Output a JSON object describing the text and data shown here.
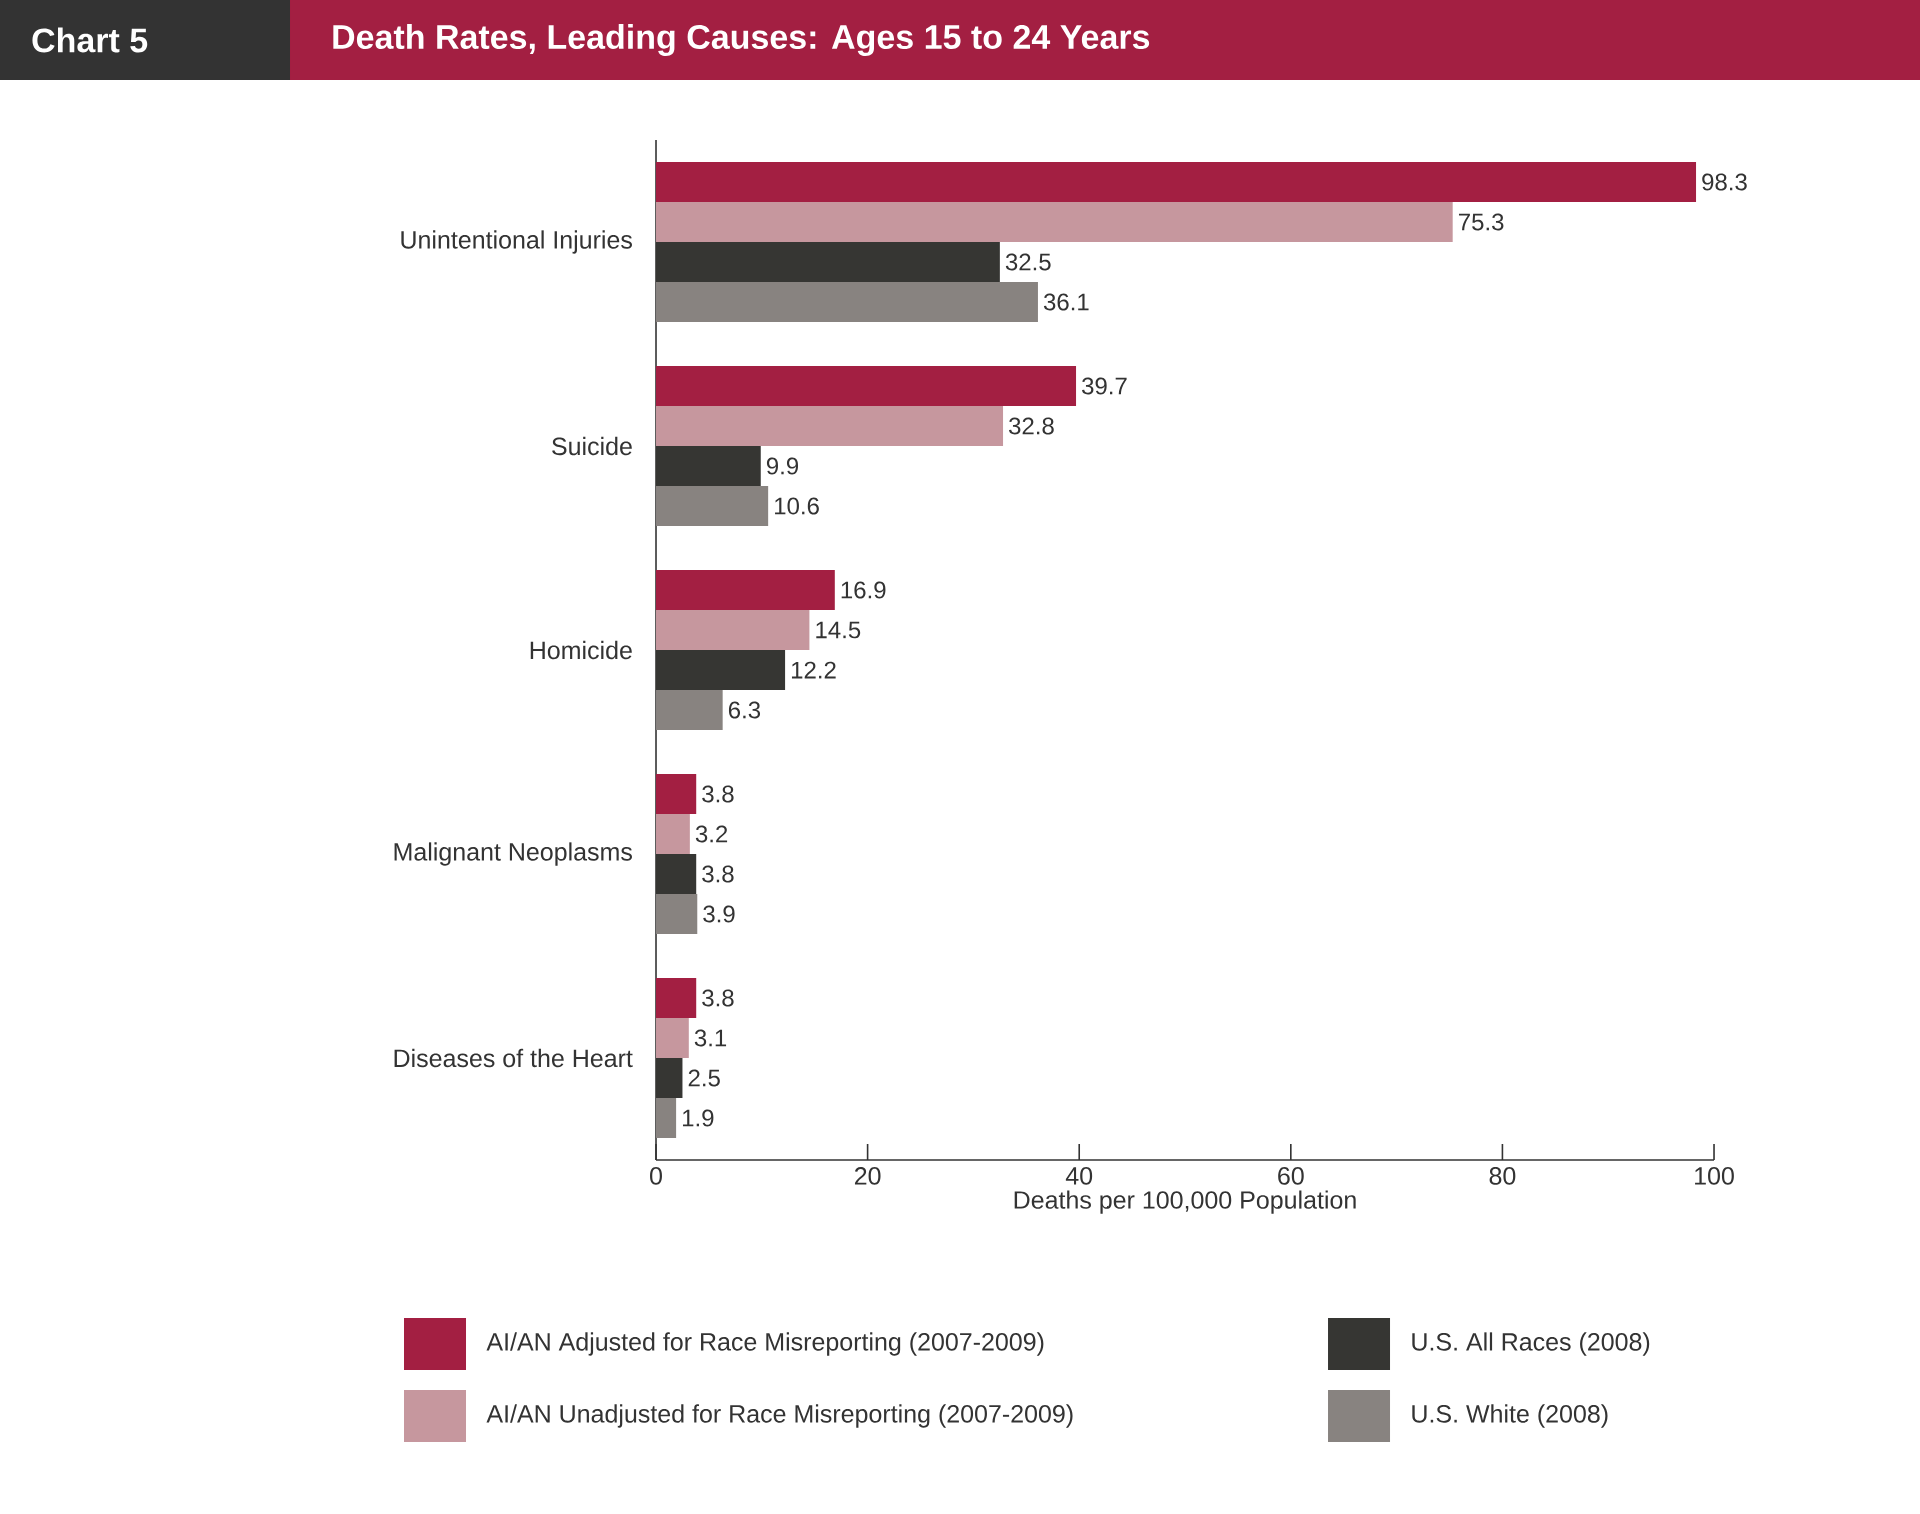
{
  "chart_data": {
    "type": "bar",
    "orientation": "horizontal",
    "title": "Death Rates, Leading Causes: Ages 15 to 24 Years",
    "annotations": [
      "Chart 5"
    ],
    "xlabel": "Deaths per 100,000 Population",
    "categories": [
      "Unintentional Injuries",
      "Suicide",
      "Homicide",
      "Malignant Neoplasms",
      "Diseases of the Heart"
    ],
    "series": [
      {
        "name": "AI/AN Adjusted for Race Misreporting (2007-2009)",
        "color": "#a31f42",
        "values": [
          98.3,
          39.7,
          16.9,
          3.8,
          3.8
        ]
      },
      {
        "name": "AI/AN Unadjusted for Race Misreporting (2007-2009)",
        "color": "#c6979e",
        "values": [
          75.3,
          32.8,
          14.5,
          3.2,
          3.1
        ]
      },
      {
        "name": "U.S. All Races (2008)",
        "color": "#363633",
        "values": [
          32.5,
          9.9,
          12.2,
          3.8,
          2.5
        ]
      },
      {
        "name": "U.S. White (2008)",
        "color": "#888380",
        "values": [
          36.1,
          10.6,
          6.3,
          3.9,
          1.9
        ]
      }
    ],
    "xlim": [
      0,
      100
    ],
    "xticks": [
      0,
      20,
      40,
      60,
      80,
      100
    ],
    "data_labels": true,
    "legend": "bottom",
    "grid": false
  }
}
